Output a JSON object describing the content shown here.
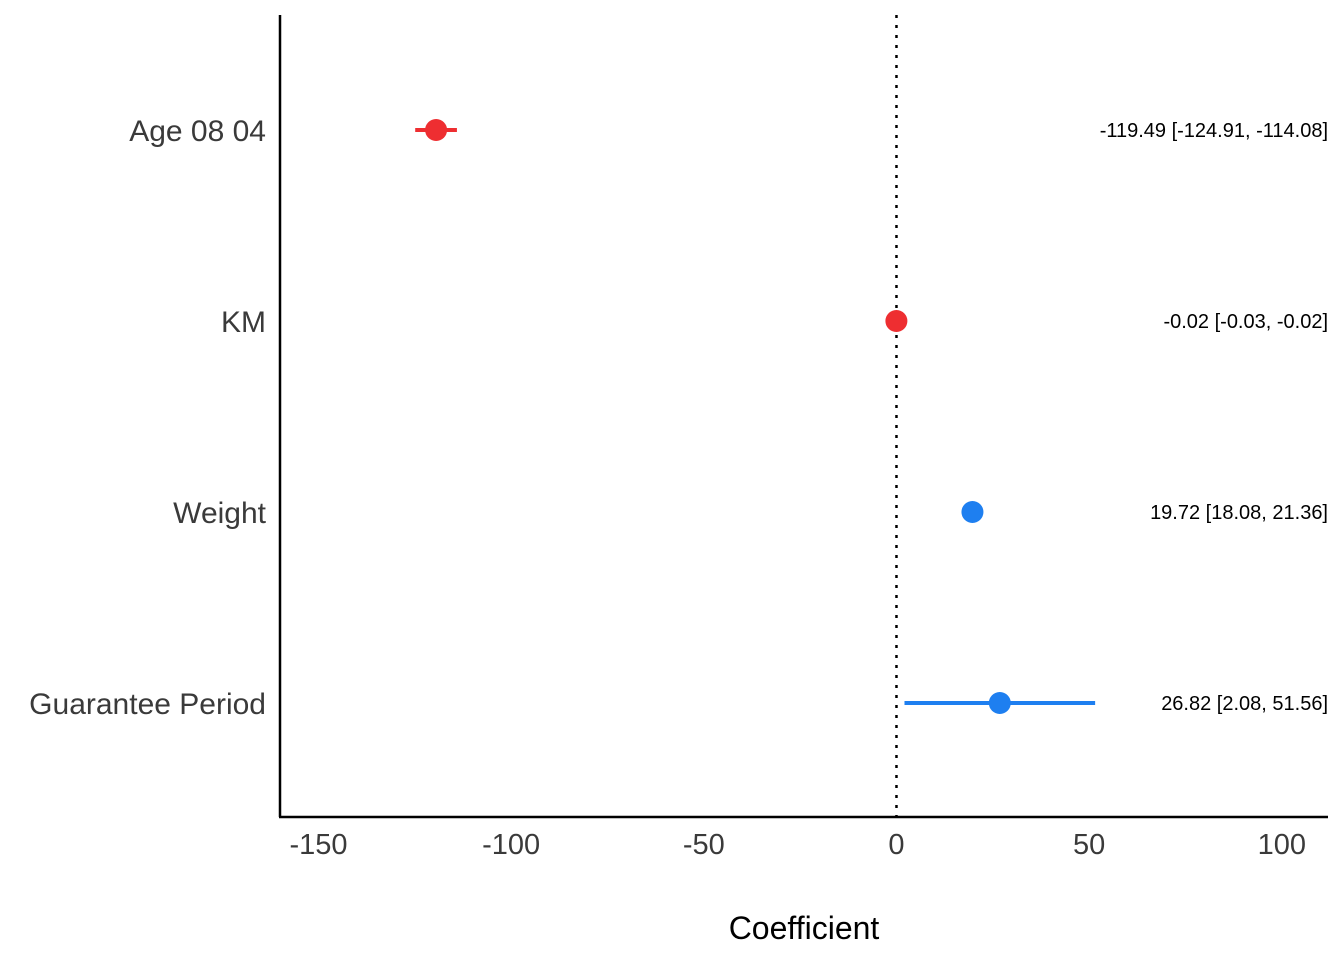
{
  "chart_data": {
    "type": "forest",
    "title": "",
    "xlabel": "Coefficient",
    "ylabel": "",
    "xlim": [
      -160,
      112
    ],
    "x_ticks": [
      -150,
      -100,
      -50,
      0,
      50,
      100
    ],
    "x_tick_labels": [
      "-150",
      "-100",
      "-50",
      "0",
      "50",
      "100"
    ],
    "reference_line": 0,
    "grid": false,
    "legend": "none",
    "colors": {
      "negative": "#ee2e31",
      "positive": "#1e7ff0"
    },
    "categories": [
      "Age 08 04",
      "KM",
      "Weight",
      "Guarantee Period"
    ],
    "estimates": [
      -119.49,
      -0.02,
      19.72,
      26.82
    ],
    "ci_low": [
      -124.91,
      -0.03,
      18.08,
      2.08
    ],
    "ci_high": [
      -114.08,
      -0.02,
      21.36,
      51.56
    ],
    "value_labels": [
      "-119.49 [-124.91, -114.08]",
      "-0.02 [-0.03, -0.02]",
      "19.72 [18.08, 21.36]",
      "26.82 [2.08, 51.56]"
    ]
  }
}
